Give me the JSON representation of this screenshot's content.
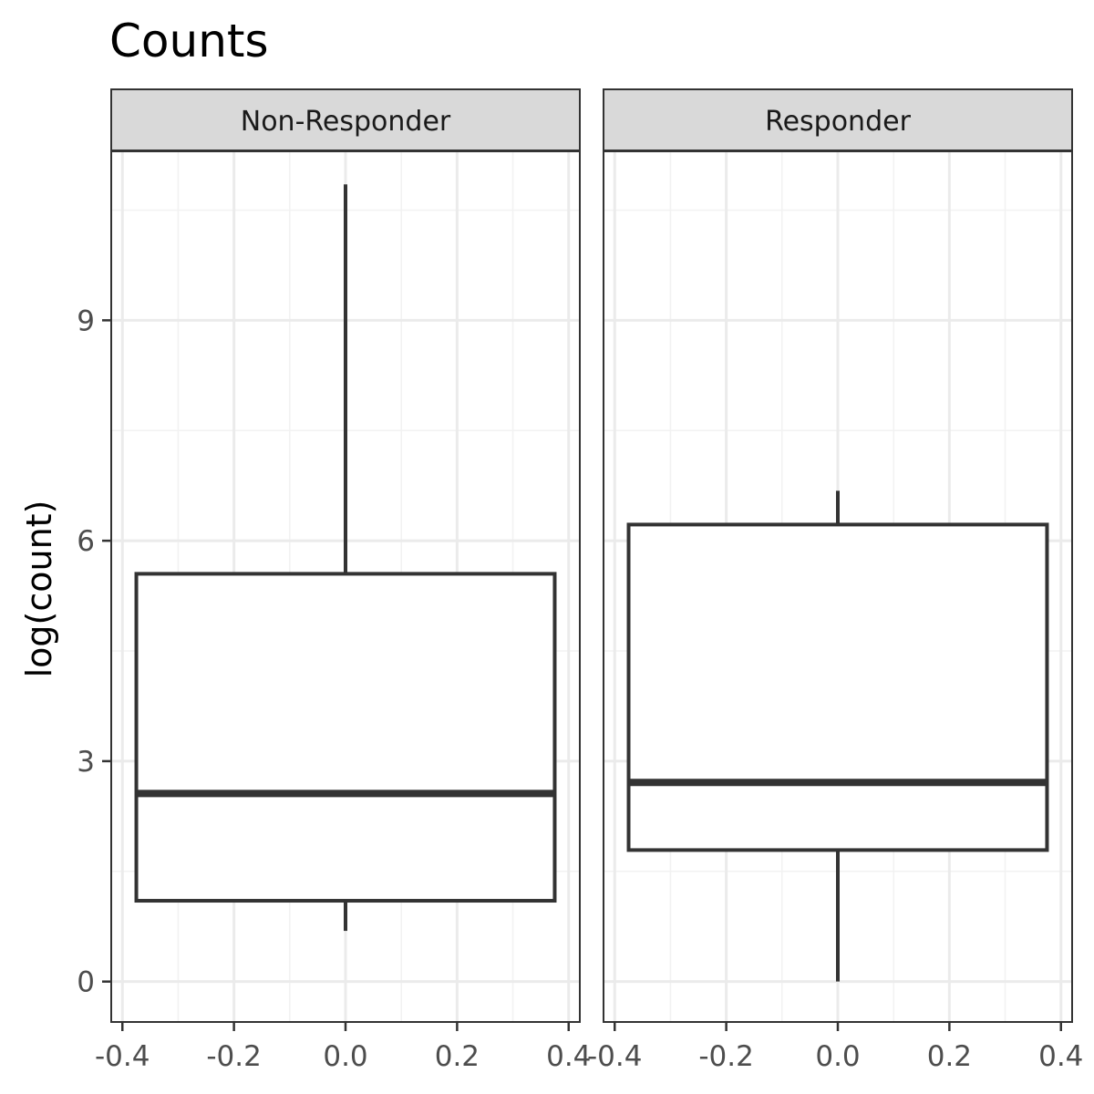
{
  "chart_data": {
    "type": "boxplot",
    "title": "Counts",
    "ylabel": "log(count)",
    "xlabel": "",
    "ylim": [
      -0.55,
      11.3
    ],
    "xlim": [
      -0.42,
      0.42
    ],
    "y_ticks": [
      "0",
      "3",
      "6",
      "9"
    ],
    "x_ticks": [
      "-0.4",
      "-0.2",
      "0.0",
      "0.2",
      "0.4"
    ],
    "grid": true,
    "facets": [
      {
        "label": "Non-Responder",
        "box": {
          "x_center": 0.0,
          "half_width": 0.375,
          "whisker_low": 0.69,
          "q1": 1.1,
          "median": 2.56,
          "q3": 5.55,
          "whisker_high": 10.85
        }
      },
      {
        "label": "Responder",
        "box": {
          "x_center": 0.0,
          "half_width": 0.375,
          "whisker_low": 0.0,
          "q1": 1.79,
          "median": 2.71,
          "q3": 6.22,
          "whisker_high": 6.68
        }
      }
    ],
    "colors": {
      "panel_border": "#333333",
      "box_stroke": "#333333",
      "strip_fill": "#d9d9d9",
      "grid_major": "#ebebeb",
      "grid_minor": "#f2f2f2",
      "tick_text": "#4d4d4d"
    }
  }
}
